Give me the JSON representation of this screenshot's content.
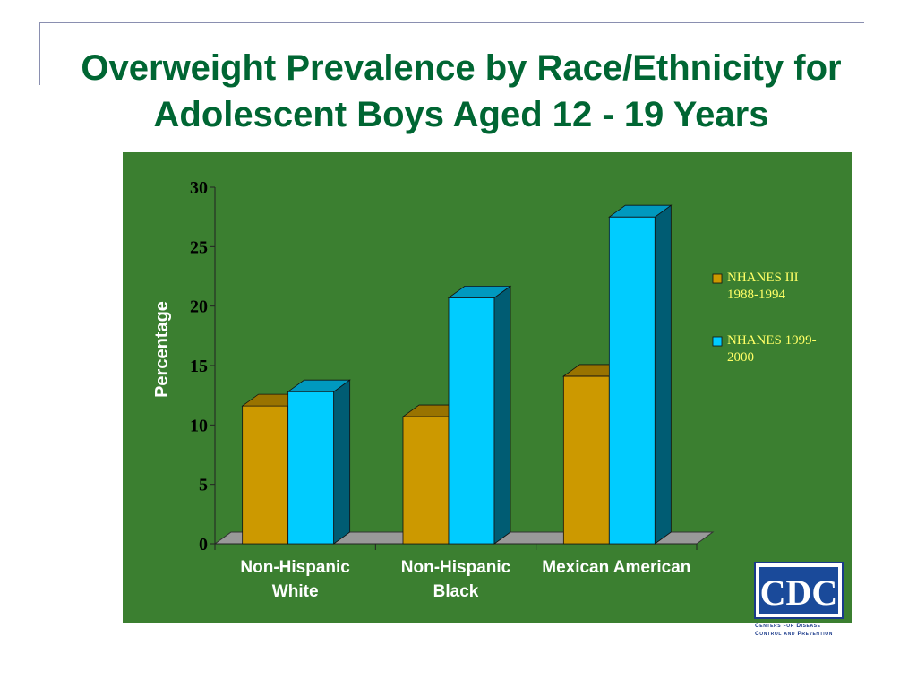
{
  "chart_data": {
    "type": "bar3d",
    "title": "Overweight Prevalence by Race/Ethnicity for Adolescent Boys Aged 12 - 19 Years",
    "y_label": "Percentage",
    "categories": [
      "Non-Hispanic White",
      "Non-Hispanic Black",
      "Mexican American"
    ],
    "series": [
      {
        "name": "NHANES III 1988-1994",
        "color": "#cc9900",
        "values": [
          11.6,
          10.7,
          14.1
        ]
      },
      {
        "name": "NHANES 1999-2000",
        "color": "#00ccff",
        "values": [
          12.8,
          20.7,
          27.5
        ]
      }
    ],
    "ylim": [
      0,
      30
    ],
    "yticks": [
      0,
      5,
      10,
      15,
      20,
      25,
      30
    ],
    "legend": "right"
  },
  "logo": {
    "text": "CDC",
    "caption": [
      "Centers for Disease",
      "Control and Prevention"
    ]
  }
}
